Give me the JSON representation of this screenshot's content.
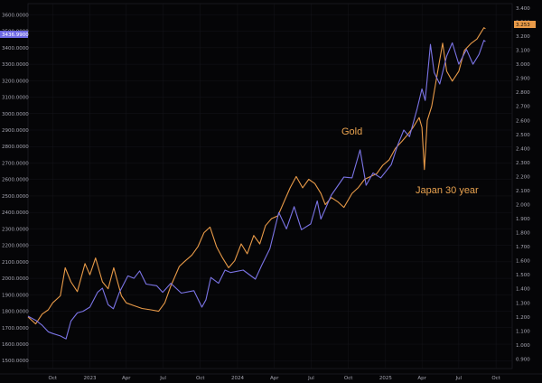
{
  "chart_data": {
    "type": "line",
    "x_axis": {
      "labels": [
        "Oct",
        "2023",
        "Apr",
        "Jul",
        "Oct",
        "2024",
        "Apr",
        "Jul",
        "Oct",
        "2025",
        "Apr",
        "Jul",
        "Oct"
      ],
      "dates": [
        "2022-10-01",
        "2023-01-01",
        "2023-04-01",
        "2023-07-01",
        "2023-10-01",
        "2024-01-01",
        "2024-04-01",
        "2024-07-01",
        "2024-10-01",
        "2025-01-01",
        "2025-04-01",
        "2025-07-01",
        "2025-10-01"
      ],
      "range": [
        "2022-08-01",
        "2025-11-10"
      ]
    },
    "y_left": {
      "ticks": [
        "1500.0000",
        "1600.0000",
        "1700.0000",
        "1800.0000",
        "1900.0000",
        "2000.0000",
        "2100.0000",
        "2200.0000",
        "2300.0000",
        "2400.0000",
        "2500.0000",
        "2600.0000",
        "2700.0000",
        "2800.0000",
        "2900.0000",
        "3000.0000",
        "3100.0000",
        "3200.0000",
        "3300.0000",
        "3400.0000",
        "3500.0000",
        "3600.0000"
      ],
      "range": [
        1452,
        3668
      ],
      "last_value_badge": "3436.9900"
    },
    "y_right": {
      "ticks": [
        "0.900",
        "1.000",
        "1.100",
        "1.200",
        "1.300",
        "1.400",
        "1.500",
        "1.600",
        "1.700",
        "1.800",
        "1.900",
        "2.000",
        "2.100",
        "2.200",
        "2.300",
        "2.400",
        "2.500",
        "2.600",
        "2.700",
        "2.800",
        "2.900",
        "3.000",
        "3.100",
        "3.200",
        "3.300",
        "3.400"
      ],
      "range": [
        0.832,
        3.432
      ],
      "last_value_badge": "3.253"
    },
    "annotations": [
      {
        "text": "Gold",
        "series": "gold"
      },
      {
        "text": "Japan 30 year",
        "series": "japan"
      }
    ],
    "series": [
      {
        "key": "gold",
        "axis": "left",
        "color": "#7b74e6",
        "points": [
          [
            "2022-08-01",
            1770
          ],
          [
            "2022-08-20",
            1745
          ],
          [
            "2022-09-05",
            1715
          ],
          [
            "2022-09-20",
            1675
          ],
          [
            "2022-10-01",
            1665
          ],
          [
            "2022-10-20",
            1650
          ],
          [
            "2022-11-03",
            1632
          ],
          [
            "2022-11-15",
            1740
          ],
          [
            "2022-12-01",
            1790
          ],
          [
            "2022-12-15",
            1800
          ],
          [
            "2023-01-01",
            1825
          ],
          [
            "2023-01-20",
            1915
          ],
          [
            "2023-02-01",
            1940
          ],
          [
            "2023-02-15",
            1840
          ],
          [
            "2023-02-28",
            1815
          ],
          [
            "2023-03-15",
            1915
          ],
          [
            "2023-04-05",
            2015
          ],
          [
            "2023-04-20",
            2000
          ],
          [
            "2023-05-04",
            2045
          ],
          [
            "2023-05-20",
            1965
          ],
          [
            "2023-06-15",
            1955
          ],
          [
            "2023-06-30",
            1915
          ],
          [
            "2023-07-20",
            1970
          ],
          [
            "2023-08-15",
            1910
          ],
          [
            "2023-09-15",
            1925
          ],
          [
            "2023-10-05",
            1825
          ],
          [
            "2023-10-15",
            1870
          ],
          [
            "2023-10-27",
            2005
          ],
          [
            "2023-11-15",
            1970
          ],
          [
            "2023-12-01",
            2050
          ],
          [
            "2023-12-15",
            2035
          ],
          [
            "2024-01-15",
            2050
          ],
          [
            "2024-02-14",
            1995
          ],
          [
            "2024-03-01",
            2080
          ],
          [
            "2024-03-21",
            2180
          ],
          [
            "2024-04-12",
            2400
          ],
          [
            "2024-05-01",
            2300
          ],
          [
            "2024-05-20",
            2435
          ],
          [
            "2024-06-07",
            2295
          ],
          [
            "2024-06-30",
            2330
          ],
          [
            "2024-07-16",
            2470
          ],
          [
            "2024-07-25",
            2360
          ],
          [
            "2024-08-20",
            2505
          ],
          [
            "2024-09-20",
            2615
          ],
          [
            "2024-10-10",
            2610
          ],
          [
            "2024-10-30",
            2780
          ],
          [
            "2024-11-14",
            2565
          ],
          [
            "2024-12-01",
            2640
          ],
          [
            "2024-12-20",
            2610
          ],
          [
            "2025-01-15",
            2690
          ],
          [
            "2025-01-31",
            2810
          ],
          [
            "2025-02-15",
            2900
          ],
          [
            "2025-03-01",
            2860
          ],
          [
            "2025-03-20",
            3030
          ],
          [
            "2025-04-01",
            3150
          ],
          [
            "2025-04-09",
            3080
          ],
          [
            "2025-04-22",
            3420
          ],
          [
            "2025-05-01",
            3250
          ],
          [
            "2025-05-15",
            3180
          ],
          [
            "2025-06-01",
            3350
          ],
          [
            "2025-06-15",
            3430
          ],
          [
            "2025-07-01",
            3300
          ],
          [
            "2025-07-20",
            3390
          ],
          [
            "2025-08-05",
            3300
          ],
          [
            "2025-08-20",
            3360
          ],
          [
            "2025-09-01",
            3445
          ],
          [
            "2025-09-05",
            3437
          ]
        ]
      },
      {
        "key": "japan",
        "axis": "right",
        "color": "#e89a48",
        "points": [
          [
            "2022-08-01",
            1.2
          ],
          [
            "2022-08-20",
            1.15
          ],
          [
            "2022-09-05",
            1.22
          ],
          [
            "2022-09-20",
            1.25
          ],
          [
            "2022-10-01",
            1.3
          ],
          [
            "2022-10-20",
            1.35
          ],
          [
            "2022-11-01",
            1.55
          ],
          [
            "2022-11-15",
            1.45
          ],
          [
            "2022-12-01",
            1.38
          ],
          [
            "2022-12-20",
            1.58
          ],
          [
            "2023-01-01",
            1.5
          ],
          [
            "2023-01-15",
            1.62
          ],
          [
            "2023-02-01",
            1.45
          ],
          [
            "2023-02-15",
            1.4
          ],
          [
            "2023-03-01",
            1.55
          ],
          [
            "2023-03-20",
            1.35
          ],
          [
            "2023-04-01",
            1.3
          ],
          [
            "2023-04-20",
            1.28
          ],
          [
            "2023-05-10",
            1.26
          ],
          [
            "2023-06-01",
            1.25
          ],
          [
            "2023-06-20",
            1.24
          ],
          [
            "2023-07-05",
            1.3
          ],
          [
            "2023-07-20",
            1.42
          ],
          [
            "2023-08-10",
            1.56
          ],
          [
            "2023-08-25",
            1.6
          ],
          [
            "2023-09-10",
            1.64
          ],
          [
            "2023-09-25",
            1.7
          ],
          [
            "2023-10-10",
            1.8
          ],
          [
            "2023-10-25",
            1.84
          ],
          [
            "2023-11-10",
            1.7
          ],
          [
            "2023-11-25",
            1.62
          ],
          [
            "2023-12-10",
            1.55
          ],
          [
            "2023-12-25",
            1.6
          ],
          [
            "2024-01-10",
            1.72
          ],
          [
            "2024-01-25",
            1.65
          ],
          [
            "2024-02-10",
            1.78
          ],
          [
            "2024-02-25",
            1.72
          ],
          [
            "2024-03-10",
            1.85
          ],
          [
            "2024-03-25",
            1.9
          ],
          [
            "2024-04-10",
            1.92
          ],
          [
            "2024-04-25",
            2.02
          ],
          [
            "2024-05-10",
            2.12
          ],
          [
            "2024-05-25",
            2.2
          ],
          [
            "2024-06-10",
            2.12
          ],
          [
            "2024-06-25",
            2.18
          ],
          [
            "2024-07-10",
            2.15
          ],
          [
            "2024-07-25",
            2.08
          ],
          [
            "2024-08-05",
            2.0
          ],
          [
            "2024-08-20",
            2.05
          ],
          [
            "2024-09-05",
            2.02
          ],
          [
            "2024-09-20",
            1.98
          ],
          [
            "2024-10-10",
            2.08
          ],
          [
            "2024-10-25",
            2.12
          ],
          [
            "2024-11-10",
            2.18
          ],
          [
            "2024-11-25",
            2.2
          ],
          [
            "2024-12-10",
            2.22
          ],
          [
            "2024-12-25",
            2.28
          ],
          [
            "2025-01-10",
            2.32
          ],
          [
            "2025-01-25",
            2.4
          ],
          [
            "2025-02-10",
            2.45
          ],
          [
            "2025-02-25",
            2.5
          ],
          [
            "2025-03-10",
            2.55
          ],
          [
            "2025-03-25",
            2.62
          ],
          [
            "2025-04-01",
            2.55
          ],
          [
            "2025-04-07",
            2.25
          ],
          [
            "2025-04-14",
            2.6
          ],
          [
            "2025-04-25",
            2.7
          ],
          [
            "2025-05-10",
            2.95
          ],
          [
            "2025-05-22",
            3.15
          ],
          [
            "2025-06-01",
            2.95
          ],
          [
            "2025-06-15",
            2.88
          ],
          [
            "2025-07-01",
            2.95
          ],
          [
            "2025-07-15",
            3.1
          ],
          [
            "2025-08-01",
            3.15
          ],
          [
            "2025-08-15",
            3.18
          ],
          [
            "2025-09-01",
            3.26
          ],
          [
            "2025-09-05",
            3.253
          ]
        ]
      }
    ]
  }
}
